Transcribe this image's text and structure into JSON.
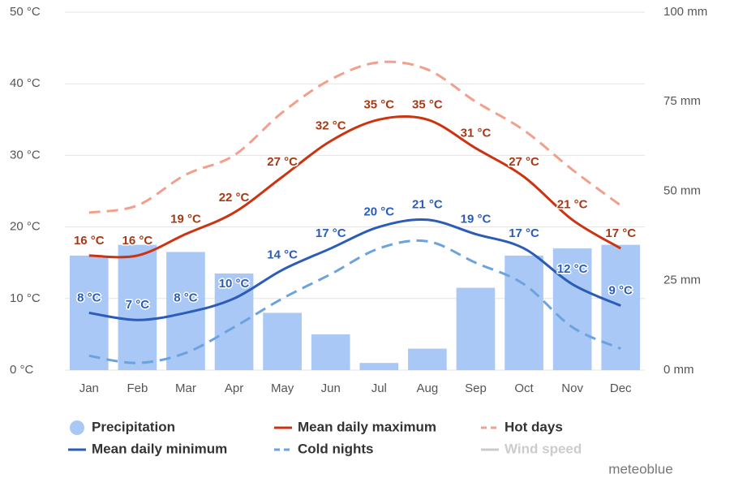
{
  "chart_data": {
    "type": "combo",
    "categories": [
      "Jan",
      "Feb",
      "Mar",
      "Apr",
      "May",
      "Jun",
      "Jul",
      "Aug",
      "Sep",
      "Oct",
      "Nov",
      "Dec"
    ],
    "ylim": [
      0,
      50
    ],
    "yticks": [
      {
        "value": 0,
        "label": "0 °C"
      },
      {
        "value": 10,
        "label": "10 °C"
      },
      {
        "value": 20,
        "label": "20 °C"
      },
      {
        "value": 30,
        "label": "30 °C"
      },
      {
        "value": 40,
        "label": "40 °C"
      },
      {
        "value": 50,
        "label": "50 °C"
      }
    ],
    "y2lim": [
      0,
      100
    ],
    "y2ticks": [
      {
        "value": 0,
        "label": "0 mm"
      },
      {
        "value": 25,
        "label": "25 mm"
      },
      {
        "value": 50,
        "label": "50 mm"
      },
      {
        "value": 75,
        "label": "75 mm"
      },
      {
        "value": 100,
        "label": "100 mm"
      }
    ],
    "grid": true,
    "series": [
      {
        "name": "Precipitation",
        "type": "bar",
        "axis": "y2",
        "color": "#a9c8f5",
        "values": [
          32,
          35,
          33,
          27,
          16,
          10,
          2,
          6,
          23,
          32,
          34,
          35
        ]
      },
      {
        "name": "Mean daily maximum",
        "type": "line",
        "color": "#cc3311",
        "label_color": "#a63a16",
        "values": [
          16,
          16,
          19,
          22,
          27,
          32,
          35,
          35,
          31,
          27,
          21,
          17
        ],
        "value_labels": [
          "16 °C",
          "16 °C",
          "19 °C",
          "22 °C",
          "27 °C",
          "32 °C",
          "35 °C",
          "35 °C",
          "31 °C",
          "27 °C",
          "21 °C",
          "17 °C"
        ]
      },
      {
        "name": "Hot days",
        "type": "line",
        "dashed": true,
        "color": "#f2a08c",
        "values": [
          22,
          23,
          27.3,
          30,
          36,
          40.6,
          43,
          42,
          37.5,
          33.5,
          28,
          23
        ]
      },
      {
        "name": "Mean daily minimum",
        "type": "line",
        "color": "#2a5cb8",
        "label_color": "#2a5cb8",
        "values": [
          8,
          7,
          8,
          10,
          14,
          17,
          20,
          21,
          19,
          17,
          12,
          9
        ],
        "value_labels": [
          "8 °C",
          "7 °C",
          "8 °C",
          "10 °C",
          "14 °C",
          "17 °C",
          "20 °C",
          "21 °C",
          "19 °C",
          "17 °C",
          "12 °C",
          "9 °C"
        ]
      },
      {
        "name": "Cold nights",
        "type": "line",
        "dashed": true,
        "color": "#6ba3e0",
        "values": [
          2,
          1,
          2.4,
          6,
          10,
          13.4,
          17,
          18,
          15,
          12,
          6,
          3
        ]
      }
    ],
    "legend_extra": [
      {
        "name": "Wind speed",
        "color": "#cccccc"
      }
    ],
    "watermark": "meteoblue"
  }
}
